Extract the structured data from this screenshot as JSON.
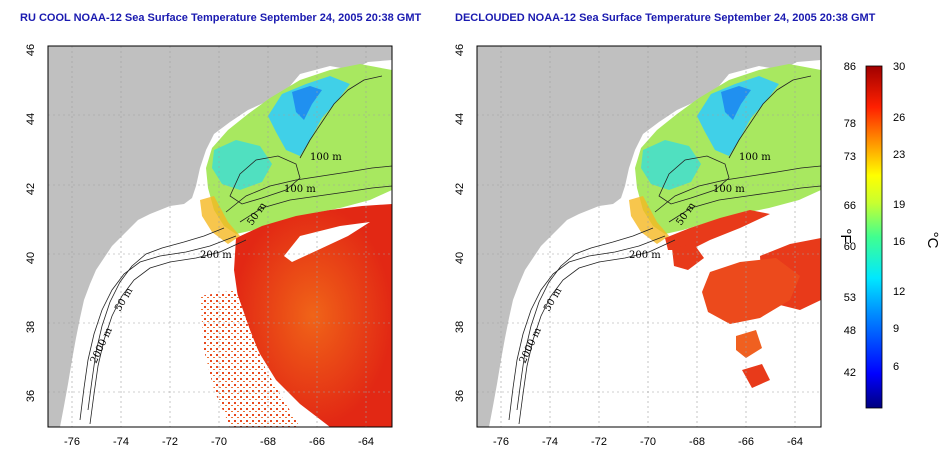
{
  "panels": [
    {
      "title": "RU COOL NOAA-12 Sea Surface Temperature September 24, 2005 20:38 GMT",
      "contour_labels": [
        "100 m",
        "100 m",
        "50 m",
        "200 m",
        "50 m",
        "2000 m"
      ]
    },
    {
      "title": "DECLOUDED NOAA-12 Sea Surface Temperature September 24, 2005 20:38 GMT",
      "contour_labels": [
        "100 m",
        "100 m",
        "50 m",
        "200 m",
        "50 m",
        "2000 m"
      ]
    }
  ],
  "map_axes": {
    "x_ticks": [
      "-76",
      "-74",
      "-72",
      "-70",
      "-68",
      "-66",
      "-64"
    ],
    "y_ticks": [
      "46",
      "44",
      "42",
      "40",
      "38",
      "36"
    ],
    "lon_range": [
      -77,
      -63
    ],
    "lat_range": [
      35,
      46
    ]
  },
  "colorbar": {
    "f_label": "°F",
    "c_label": "°C",
    "f_ticks": [
      "86",
      "78",
      "73",
      "66",
      "60",
      "53",
      "48",
      "42"
    ],
    "c_ticks": [
      "30",
      "26",
      "23",
      "19",
      "16",
      "12",
      "9",
      "6"
    ],
    "colors": [
      "#00007f",
      "#0000ff",
      "#0080ff",
      "#00ffff",
      "#40ff80",
      "#c0ff40",
      "#ffff00",
      "#ff8000",
      "#ff2000",
      "#b00000",
      "#800000"
    ]
  },
  "colors": {
    "land": "#c0c0c0",
    "title_text": "#1a1ab0",
    "warm": "#e83a1a",
    "cool": "#40d8e0",
    "shelf": "#a8e860"
  }
}
